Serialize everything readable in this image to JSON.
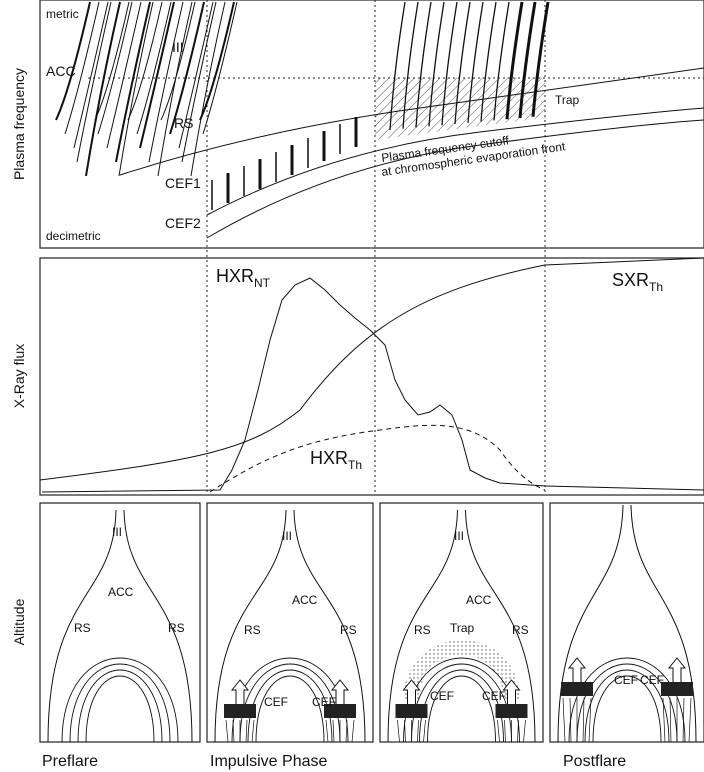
{
  "axis_labels": [
    "Plasma frequency",
    "X-Ray flux",
    "Altitude"
  ],
  "top_panel": {
    "metric": "metric",
    "decimetric": "decimetric",
    "iii": "III",
    "acc": "ACC",
    "rs": "RS",
    "trap": "Trap",
    "cef1": "CEF1",
    "cef2": "CEF2",
    "cutoff_line1": "Plasma frequency cutoff",
    "cutoff_line2": "at chromospheric evaporation front"
  },
  "middle_panel": {
    "hxr_nt": {
      "main": "HXR",
      "sub": "NT"
    },
    "sxr_th": {
      "main": "SXR",
      "sub": "Th"
    },
    "hxr_th": {
      "main": "HXR",
      "sub": "Th"
    }
  },
  "bottom_panels": [
    {
      "labels": [
        "III",
        "ACC",
        "RS",
        "RS"
      ],
      "caption": "Preflare"
    },
    {
      "labels": [
        "III",
        "ACC",
        "RS",
        "RS",
        "CEF",
        "CEF"
      ],
      "caption": "Impulsive Phase"
    },
    {
      "labels": [
        "III",
        "ACC",
        "RS",
        "RS",
        "Trap",
        "CEF",
        "CEF"
      ],
      "caption": ""
    },
    {
      "labels": [
        "CEF",
        "CEF"
      ],
      "caption": "Postflare"
    }
  ]
}
